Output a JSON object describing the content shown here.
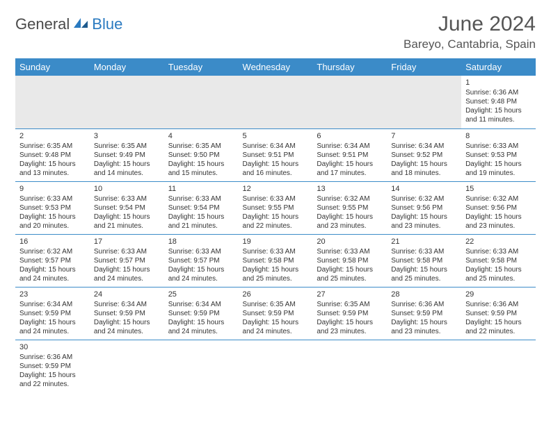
{
  "logo": {
    "text1": "General",
    "text2": "Blue"
  },
  "title": "June 2024",
  "location": "Bareyo, Cantabria, Spain",
  "header_bg": "#3b8bc8",
  "header_fg": "#ffffff",
  "border_color": "#3b8bc8",
  "blank_bg": "#e9e9e9",
  "days": [
    "Sunday",
    "Monday",
    "Tuesday",
    "Wednesday",
    "Thursday",
    "Friday",
    "Saturday"
  ],
  "weeks": [
    [
      null,
      null,
      null,
      null,
      null,
      null,
      {
        "n": "1",
        "sr": "Sunrise: 6:36 AM",
        "ss": "Sunset: 9:48 PM",
        "d1": "Daylight: 15 hours",
        "d2": "and 11 minutes."
      }
    ],
    [
      {
        "n": "2",
        "sr": "Sunrise: 6:35 AM",
        "ss": "Sunset: 9:48 PM",
        "d1": "Daylight: 15 hours",
        "d2": "and 13 minutes."
      },
      {
        "n": "3",
        "sr": "Sunrise: 6:35 AM",
        "ss": "Sunset: 9:49 PM",
        "d1": "Daylight: 15 hours",
        "d2": "and 14 minutes."
      },
      {
        "n": "4",
        "sr": "Sunrise: 6:35 AM",
        "ss": "Sunset: 9:50 PM",
        "d1": "Daylight: 15 hours",
        "d2": "and 15 minutes."
      },
      {
        "n": "5",
        "sr": "Sunrise: 6:34 AM",
        "ss": "Sunset: 9:51 PM",
        "d1": "Daylight: 15 hours",
        "d2": "and 16 minutes."
      },
      {
        "n": "6",
        "sr": "Sunrise: 6:34 AM",
        "ss": "Sunset: 9:51 PM",
        "d1": "Daylight: 15 hours",
        "d2": "and 17 minutes."
      },
      {
        "n": "7",
        "sr": "Sunrise: 6:34 AM",
        "ss": "Sunset: 9:52 PM",
        "d1": "Daylight: 15 hours",
        "d2": "and 18 minutes."
      },
      {
        "n": "8",
        "sr": "Sunrise: 6:33 AM",
        "ss": "Sunset: 9:53 PM",
        "d1": "Daylight: 15 hours",
        "d2": "and 19 minutes."
      }
    ],
    [
      {
        "n": "9",
        "sr": "Sunrise: 6:33 AM",
        "ss": "Sunset: 9:53 PM",
        "d1": "Daylight: 15 hours",
        "d2": "and 20 minutes."
      },
      {
        "n": "10",
        "sr": "Sunrise: 6:33 AM",
        "ss": "Sunset: 9:54 PM",
        "d1": "Daylight: 15 hours",
        "d2": "and 21 minutes."
      },
      {
        "n": "11",
        "sr": "Sunrise: 6:33 AM",
        "ss": "Sunset: 9:54 PM",
        "d1": "Daylight: 15 hours",
        "d2": "and 21 minutes."
      },
      {
        "n": "12",
        "sr": "Sunrise: 6:33 AM",
        "ss": "Sunset: 9:55 PM",
        "d1": "Daylight: 15 hours",
        "d2": "and 22 minutes."
      },
      {
        "n": "13",
        "sr": "Sunrise: 6:32 AM",
        "ss": "Sunset: 9:55 PM",
        "d1": "Daylight: 15 hours",
        "d2": "and 23 minutes."
      },
      {
        "n": "14",
        "sr": "Sunrise: 6:32 AM",
        "ss": "Sunset: 9:56 PM",
        "d1": "Daylight: 15 hours",
        "d2": "and 23 minutes."
      },
      {
        "n": "15",
        "sr": "Sunrise: 6:32 AM",
        "ss": "Sunset: 9:56 PM",
        "d1": "Daylight: 15 hours",
        "d2": "and 23 minutes."
      }
    ],
    [
      {
        "n": "16",
        "sr": "Sunrise: 6:32 AM",
        "ss": "Sunset: 9:57 PM",
        "d1": "Daylight: 15 hours",
        "d2": "and 24 minutes."
      },
      {
        "n": "17",
        "sr": "Sunrise: 6:33 AM",
        "ss": "Sunset: 9:57 PM",
        "d1": "Daylight: 15 hours",
        "d2": "and 24 minutes."
      },
      {
        "n": "18",
        "sr": "Sunrise: 6:33 AM",
        "ss": "Sunset: 9:57 PM",
        "d1": "Daylight: 15 hours",
        "d2": "and 24 minutes."
      },
      {
        "n": "19",
        "sr": "Sunrise: 6:33 AM",
        "ss": "Sunset: 9:58 PM",
        "d1": "Daylight: 15 hours",
        "d2": "and 25 minutes."
      },
      {
        "n": "20",
        "sr": "Sunrise: 6:33 AM",
        "ss": "Sunset: 9:58 PM",
        "d1": "Daylight: 15 hours",
        "d2": "and 25 minutes."
      },
      {
        "n": "21",
        "sr": "Sunrise: 6:33 AM",
        "ss": "Sunset: 9:58 PM",
        "d1": "Daylight: 15 hours",
        "d2": "and 25 minutes."
      },
      {
        "n": "22",
        "sr": "Sunrise: 6:33 AM",
        "ss": "Sunset: 9:58 PM",
        "d1": "Daylight: 15 hours",
        "d2": "and 25 minutes."
      }
    ],
    [
      {
        "n": "23",
        "sr": "Sunrise: 6:34 AM",
        "ss": "Sunset: 9:59 PM",
        "d1": "Daylight: 15 hours",
        "d2": "and 24 minutes."
      },
      {
        "n": "24",
        "sr": "Sunrise: 6:34 AM",
        "ss": "Sunset: 9:59 PM",
        "d1": "Daylight: 15 hours",
        "d2": "and 24 minutes."
      },
      {
        "n": "25",
        "sr": "Sunrise: 6:34 AM",
        "ss": "Sunset: 9:59 PM",
        "d1": "Daylight: 15 hours",
        "d2": "and 24 minutes."
      },
      {
        "n": "26",
        "sr": "Sunrise: 6:35 AM",
        "ss": "Sunset: 9:59 PM",
        "d1": "Daylight: 15 hours",
        "d2": "and 24 minutes."
      },
      {
        "n": "27",
        "sr": "Sunrise: 6:35 AM",
        "ss": "Sunset: 9:59 PM",
        "d1": "Daylight: 15 hours",
        "d2": "and 23 minutes."
      },
      {
        "n": "28",
        "sr": "Sunrise: 6:36 AM",
        "ss": "Sunset: 9:59 PM",
        "d1": "Daylight: 15 hours",
        "d2": "and 23 minutes."
      },
      {
        "n": "29",
        "sr": "Sunrise: 6:36 AM",
        "ss": "Sunset: 9:59 PM",
        "d1": "Daylight: 15 hours",
        "d2": "and 22 minutes."
      }
    ],
    [
      {
        "n": "30",
        "sr": "Sunrise: 6:36 AM",
        "ss": "Sunset: 9:59 PM",
        "d1": "Daylight: 15 hours",
        "d2": "and 22 minutes."
      },
      null,
      null,
      null,
      null,
      null,
      null
    ]
  ]
}
